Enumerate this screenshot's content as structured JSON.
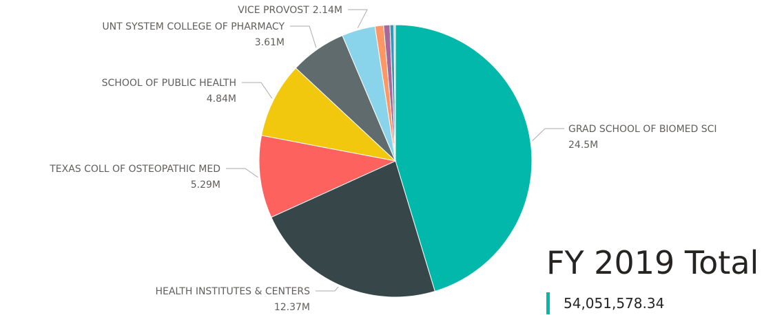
{
  "chart_data": {
    "type": "pie",
    "categories": [
      "GRAD SCHOOL OF BIOMED SCI",
      "HEALTH INSTITUTES & CENTERS",
      "TEXAS COLL OF OSTEOPATHIC MED",
      "SCHOOL OF PUBLIC HEALTH",
      "UNT SYSTEM COLLEGE OF PHARMACY",
      "VICE PROVOST",
      null,
      null,
      null,
      null
    ],
    "values": [
      24.5,
      12.37,
      5.29,
      4.84,
      3.61,
      2.14,
      0.55,
      0.4,
      0.25,
      0.1
    ],
    "value_labels": [
      "24.5M",
      "12.37M",
      "5.29M",
      "4.84M",
      "3.61M",
      "2.14M",
      null,
      null,
      null,
      null
    ],
    "colors": [
      "#01B8AA",
      "#374649",
      "#FD625E",
      "#F2C80F",
      "#5F6B6D",
      "#8AD4EB",
      "#FE9666",
      "#A66999",
      "#3599B8",
      "#DFBFBF"
    ]
  },
  "card": {
    "title": "FY 2019 Total",
    "value": "54,051,578.34"
  }
}
